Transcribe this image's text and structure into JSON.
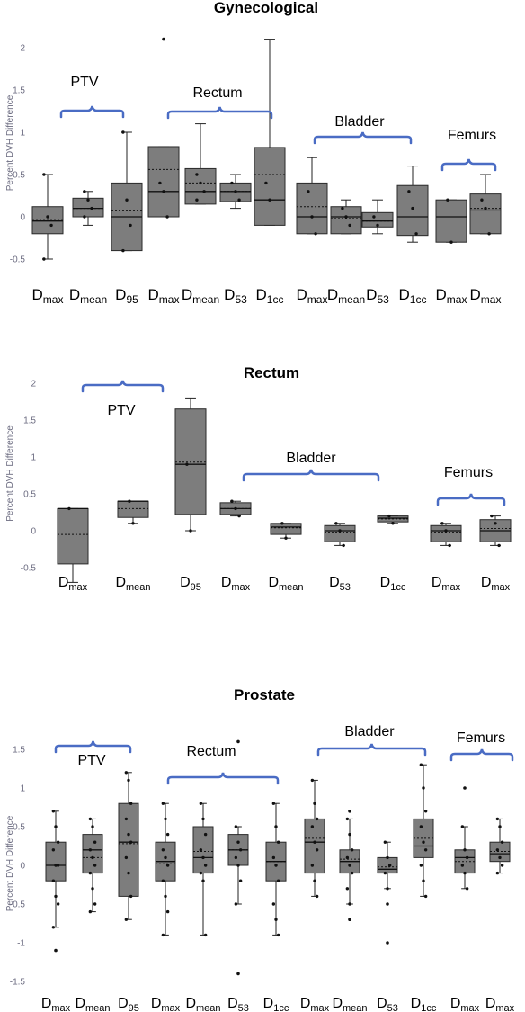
{
  "chart_data": [
    {
      "type": "box",
      "title": "Gynecological",
      "ylabel": "Percent DVH Difference",
      "yticks": [
        -0.5,
        0,
        0.5,
        1,
        1.5,
        2
      ],
      "ylim": [
        -0.6,
        2.15
      ],
      "groups": [
        {
          "label": "PTV",
          "from": 0,
          "to": 2
        },
        {
          "label": "Rectum",
          "from": 3,
          "to": 6
        },
        {
          "label": "Bladder",
          "from": 7,
          "to": 10
        },
        {
          "label": "Femurs",
          "from": 11,
          "to": 12
        }
      ],
      "categories": [
        {
          "base": "D",
          "sub": "max"
        },
        {
          "base": "D",
          "sub": "mean"
        },
        {
          "base": "D",
          "sub": "95"
        },
        {
          "base": "D",
          "sub": "max"
        },
        {
          "base": "D",
          "sub": "mean"
        },
        {
          "base": "D",
          "sub": "53"
        },
        {
          "base": "D",
          "sub": "1cc"
        },
        {
          "base": "D",
          "sub": "max"
        },
        {
          "base": "D",
          "sub": "mean"
        },
        {
          "base": "D",
          "sub": "53"
        },
        {
          "base": "D",
          "sub": "1cc"
        },
        {
          "base": "D",
          "sub": "max"
        },
        {
          "base": "D",
          "sub": "max"
        }
      ],
      "boxes": [
        {
          "min": -0.5,
          "q1": -0.2,
          "median": -0.05,
          "q3": 0.12,
          "max": 0.5,
          "mean": -0.03,
          "points": [
            0.5,
            0,
            -0.1,
            -0.5
          ]
        },
        {
          "min": -0.1,
          "q1": 0,
          "median": 0.1,
          "q3": 0.22,
          "max": 0.3,
          "mean": 0.1,
          "points": [
            0.3,
            0.2,
            0.1,
            0
          ]
        },
        {
          "min": -0.4,
          "q1": -0.4,
          "median": 0,
          "q3": 0.4,
          "max": 1.0,
          "mean": 0.07,
          "points": [
            1.0,
            0.2,
            -0.1,
            -0.4
          ]
        },
        {
          "min": 0,
          "q1": 0,
          "median": 0.3,
          "q3": 0.83,
          "max": 0.83,
          "mean": 0.56,
          "points": [
            0.4,
            0.3,
            0
          ],
          "outliers": [
            2.1
          ]
        },
        {
          "min": 0.15,
          "q1": 0.15,
          "median": 0.3,
          "q3": 0.57,
          "max": 1.1,
          "mean": 0.4,
          "points": [
            0.5,
            0.4,
            0.3,
            0.2
          ]
        },
        {
          "min": 0.1,
          "q1": 0.18,
          "median": 0.3,
          "q3": 0.4,
          "max": 0.5,
          "mean": 0.3,
          "points": [
            0.4,
            0.3,
            0.2
          ]
        },
        {
          "min": -0.1,
          "q1": -0.1,
          "median": 0.2,
          "q3": 0.82,
          "max": 2.1,
          "mean": 0.5,
          "points": [
            0.4,
            0.2
          ]
        },
        {
          "min": -0.2,
          "q1": -0.2,
          "median": 0,
          "q3": 0.4,
          "max": 0.7,
          "mean": 0.12,
          "points": [
            0.3,
            0,
            -0.2
          ]
        },
        {
          "min": -0.2,
          "q1": -0.2,
          "median": 0,
          "q3": 0.12,
          "max": 0.2,
          "mean": -0.02,
          "points": [
            0.1,
            0,
            -0.1
          ]
        },
        {
          "min": -0.2,
          "q1": -0.12,
          "median": -0.05,
          "q3": 0.05,
          "max": 0.2,
          "mean": -0.05,
          "points": [
            0,
            -0.1
          ]
        },
        {
          "min": -0.3,
          "q1": -0.22,
          "median": 0,
          "q3": 0.37,
          "max": 0.6,
          "mean": 0.08,
          "points": [
            0.3,
            0.1,
            -0.2
          ]
        },
        {
          "min": -0.3,
          "q1": -0.3,
          "median": 0,
          "q3": 0.2,
          "max": 0.2,
          "mean": 0,
          "points": [
            0.2,
            -0.3
          ]
        },
        {
          "min": -0.2,
          "q1": -0.2,
          "median": 0.08,
          "q3": 0.27,
          "max": 0.5,
          "mean": 0.1,
          "points": [
            0.2,
            0.1,
            -0.2
          ]
        }
      ]
    },
    {
      "type": "box",
      "title": "Rectum",
      "ylabel": "Percent DVH Difference",
      "yticks": [
        -0.5,
        0,
        0.5,
        1,
        1.5,
        2
      ],
      "ylim": [
        -0.7,
        2.05
      ],
      "groups": [
        {
          "label": "PTV",
          "from": 0,
          "to": 1
        },
        {
          "label": "Bladder",
          "from": 3,
          "to": 6
        },
        {
          "label": "Femurs",
          "from": 7,
          "to": 8
        }
      ],
      "categories": [
        {
          "base": "D",
          "sub": "max"
        },
        {
          "base": "D",
          "sub": "mean"
        },
        {
          "base": "D",
          "sub": "95"
        },
        {
          "base": "D",
          "sub": "max"
        },
        {
          "base": "D",
          "sub": "mean"
        },
        {
          "base": "D",
          "sub": "53"
        },
        {
          "base": "D",
          "sub": "1cc"
        },
        {
          "base": "D",
          "sub": "max"
        },
        {
          "base": "D",
          "sub": "max"
        }
      ],
      "boxes": [
        {
          "min": -0.7,
          "q1": -0.45,
          "median": 0.3,
          "q3": 0.3,
          "max": 0.3,
          "mean": -0.05,
          "points": [
            0.3
          ]
        },
        {
          "min": 0.1,
          "q1": 0.18,
          "median": 0.4,
          "q3": 0.4,
          "max": 0.4,
          "mean": 0.3,
          "points": [
            0.4,
            0.1
          ]
        },
        {
          "min": 0,
          "q1": 0.22,
          "median": 0.9,
          "q3": 1.65,
          "max": 1.8,
          "mean": 0.93,
          "points": [
            0.9,
            0
          ]
        },
        {
          "min": 0.2,
          "q1": 0.22,
          "median": 0.3,
          "q3": 0.38,
          "max": 0.4,
          "mean": 0.3,
          "points": [
            0.4,
            0.3,
            0.2
          ]
        },
        {
          "min": -0.1,
          "q1": -0.05,
          "median": 0.05,
          "q3": 0.1,
          "max": 0.1,
          "mean": 0.04,
          "points": [
            0.1,
            -0.1
          ]
        },
        {
          "min": -0.2,
          "q1": -0.15,
          "median": 0,
          "q3": 0.07,
          "max": 0.1,
          "mean": -0.02,
          "points": [
            0.1,
            0,
            -0.2
          ]
        },
        {
          "min": 0.1,
          "q1": 0.12,
          "median": 0.17,
          "q3": 0.2,
          "max": 0.2,
          "mean": 0.16,
          "points": [
            0.2,
            0.1
          ]
        },
        {
          "min": -0.2,
          "q1": -0.15,
          "median": 0,
          "q3": 0.07,
          "max": 0.1,
          "mean": -0.02,
          "points": [
            0.1,
            0,
            -0.2
          ]
        },
        {
          "min": -0.2,
          "q1": -0.15,
          "median": 0,
          "q3": 0.15,
          "max": 0.2,
          "mean": 0.03,
          "points": [
            0.2,
            0.1,
            -0.2
          ]
        }
      ]
    },
    {
      "type": "box",
      "title": "Prostate",
      "ylabel": "Percent DVH Difference",
      "yticks": [
        -1.5,
        -1,
        -0.5,
        0,
        0.5,
        1,
        1.5
      ],
      "ylim": [
        -1.55,
        1.65
      ],
      "groups": [
        {
          "label": "PTV",
          "from": 0,
          "to": 2
        },
        {
          "label": "Rectum",
          "from": 3,
          "to": 6
        },
        {
          "label": "Bladder",
          "from": 7,
          "to": 10
        },
        {
          "label": "Femurs",
          "from": 11,
          "to": 12
        }
      ],
      "categories": [
        {
          "base": "D",
          "sub": "max"
        },
        {
          "base": "D",
          "sub": "mean"
        },
        {
          "base": "D",
          "sub": "95"
        },
        {
          "base": "D",
          "sub": "max"
        },
        {
          "base": "D",
          "sub": "mean"
        },
        {
          "base": "D",
          "sub": "53"
        },
        {
          "base": "D",
          "sub": "1cc"
        },
        {
          "base": "D",
          "sub": "max"
        },
        {
          "base": "D",
          "sub": "mean"
        },
        {
          "base": "D",
          "sub": "53"
        },
        {
          "base": "D",
          "sub": "1cc"
        },
        {
          "base": "D",
          "sub": "max"
        },
        {
          "base": "D",
          "sub": "max"
        }
      ],
      "boxes": [
        {
          "min": -0.8,
          "q1": -0.2,
          "median": 0,
          "q3": 0.3,
          "max": 0.7,
          "mean": 0,
          "points": [
            0.7,
            0.5,
            0.3,
            0.2,
            0,
            0,
            -0.2,
            -0.4,
            -0.5,
            -0.8
          ],
          "outliers": [
            -1.1
          ]
        },
        {
          "min": -0.6,
          "q1": -0.1,
          "median": 0.2,
          "q3": 0.4,
          "max": 0.6,
          "mean": 0.1,
          "points": [
            0.6,
            0.5,
            0.3,
            0.2,
            0.1,
            0,
            -0.1,
            -0.3,
            -0.5,
            -0.6
          ]
        },
        {
          "min": -0.7,
          "q1": -0.4,
          "median": 0.3,
          "q3": 0.8,
          "max": 1.2,
          "mean": 0.28,
          "points": [
            1.2,
            1.1,
            0.8,
            0.6,
            0.4,
            0.3,
            0.1,
            -0.1,
            -0.4,
            -0.7
          ]
        },
        {
          "min": -0.9,
          "q1": -0.2,
          "median": 0.05,
          "q3": 0.3,
          "max": 0.8,
          "mean": 0.02,
          "points": [
            0.8,
            0.6,
            0.4,
            0.2,
            0.1,
            0,
            -0.2,
            -0.4,
            -0.6,
            -0.9
          ]
        },
        {
          "min": -0.9,
          "q1": -0.1,
          "median": 0.1,
          "q3": 0.5,
          "max": 0.8,
          "mean": 0.18,
          "points": [
            0.8,
            0.6,
            0.4,
            0.2,
            0.1,
            0,
            -0.1,
            -0.2,
            -0.9
          ]
        },
        {
          "min": -0.5,
          "q1": 0,
          "median": 0.2,
          "q3": 0.4,
          "max": 0.5,
          "mean": 0.2,
          "points": [
            0.5,
            0.3,
            0.2,
            0.1,
            0,
            -0.2,
            -0.5
          ],
          "outliers": [
            1.6,
            -1.4
          ]
        },
        {
          "min": -0.9,
          "q1": -0.2,
          "median": 0.05,
          "q3": 0.3,
          "max": 0.8,
          "mean": 0.05,
          "points": [
            0.8,
            0.5,
            0.3,
            0.1,
            0,
            -0.2,
            -0.5,
            -0.7,
            -0.9
          ]
        },
        {
          "min": -0.4,
          "q1": -0.1,
          "median": 0.3,
          "q3": 0.6,
          "max": 1.1,
          "mean": 0.35,
          "points": [
            1.1,
            0.8,
            0.6,
            0.5,
            0.3,
            0.2,
            0,
            -0.2,
            -0.4
          ]
        },
        {
          "min": -0.5,
          "q1": -0.1,
          "median": 0.05,
          "q3": 0.2,
          "max": 0.6,
          "mean": 0.08,
          "points": [
            0.6,
            0.4,
            0.2,
            0.1,
            0,
            -0.1,
            -0.3,
            -0.5
          ],
          "outliers": [
            0.7,
            -0.7
          ]
        },
        {
          "min": -0.3,
          "q1": -0.1,
          "median": -0.05,
          "q3": 0.1,
          "max": 0.3,
          "mean": -0.02,
          "points": [
            0.3,
            0.1,
            0,
            -0.1,
            -0.3
          ],
          "outliers": [
            -0.5,
            -1.0
          ]
        },
        {
          "min": -0.4,
          "q1": 0.1,
          "median": 0.25,
          "q3": 0.6,
          "max": 1.3,
          "mean": 0.35,
          "points": [
            1.3,
            1.0,
            0.7,
            0.5,
            0.3,
            0.2,
            0,
            -0.2,
            -0.4
          ]
        },
        {
          "min": -0.3,
          "q1": -0.1,
          "median": 0.1,
          "q3": 0.2,
          "max": 0.5,
          "mean": 0.05,
          "points": [
            0.5,
            0.2,
            0.1,
            0,
            -0.1,
            -0.3
          ],
          "outliers": [
            1.0
          ]
        },
        {
          "min": -0.1,
          "q1": 0.05,
          "median": 0.15,
          "q3": 0.3,
          "max": 0.6,
          "mean": 0.18,
          "points": [
            0.6,
            0.5,
            0.3,
            0.2,
            0.1,
            0,
            -0.1
          ]
        }
      ]
    }
  ]
}
